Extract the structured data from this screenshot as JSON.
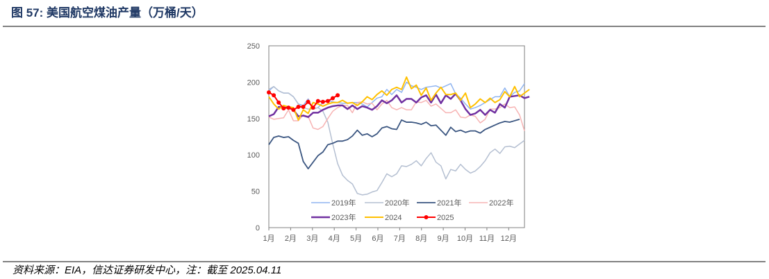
{
  "title": "图 57:  美国航空煤油产量（万桶/天）",
  "footer": "资料来源：EIA，信达证券研发中心，注：截至 2025.04.11",
  "chart_data": {
    "type": "line",
    "title": "",
    "xlabel": "",
    "ylabel": "",
    "ylim": [
      0,
      250
    ],
    "yticks": [
      "0",
      "50",
      "100",
      "150",
      "200",
      "250"
    ],
    "xticks": [
      "1月",
      "2月",
      "3月",
      "4月",
      "5月",
      "6月",
      "7月",
      "8月",
      "9月",
      "10月",
      "11月",
      "12月"
    ],
    "x_unit": "week",
    "grid": false,
    "legend": "bottom-inside",
    "series": [
      {
        "name": "2019年",
        "color": "#8fb4f0",
        "width": 1.5,
        "values": [
          188,
          194,
          188,
          185,
          185,
          180,
          170,
          168,
          177,
          163,
          165,
          172,
          175,
          173,
          172,
          171,
          171,
          172,
          172,
          170,
          166,
          172,
          178,
          180,
          190,
          183,
          190,
          186,
          200,
          195,
          193,
          190,
          193,
          194,
          195,
          192,
          195,
          198,
          184,
          178,
          170,
          163,
          165,
          168,
          172,
          176,
          180,
          180,
          192,
          180,
          186,
          188,
          198
        ]
      },
      {
        "name": "2020年",
        "color": "#b4bfd1",
        "width": 1.5,
        "values": [
          190,
          194,
          188,
          185,
          185,
          180,
          170,
          165,
          163,
          163,
          165,
          160,
          145,
          115,
          88,
          72,
          65,
          60,
          47,
          45,
          46,
          49,
          51,
          62,
          74,
          70,
          74,
          85,
          84,
          87,
          92,
          85,
          95,
          103,
          90,
          85,
          67,
          80,
          78,
          87,
          80,
          75,
          78,
          84,
          92,
          103,
          108,
          102,
          111,
          112,
          110,
          115,
          120
        ]
      },
      {
        "name": "2021年",
        "color": "#3a5580",
        "width": 1.8,
        "values": [
          114,
          124,
          126,
          124,
          125,
          120,
          116,
          91,
          81,
          90,
          99,
          104,
          114,
          116,
          119,
          119,
          121,
          126,
          134,
          127,
          129,
          125,
          129,
          137,
          139,
          136,
          135,
          148,
          145,
          145,
          144,
          142,
          145,
          140,
          141,
          134,
          127,
          138,
          132,
          134,
          131,
          133,
          133,
          130,
          135,
          138,
          141,
          144,
          146,
          145,
          147,
          149
        ]
      },
      {
        "name": "2022年",
        "color": "#f7b3b3",
        "width": 1.5,
        "values": [
          152,
          149,
          150,
          151,
          162,
          147,
          147,
          155,
          153,
          137,
          135,
          139,
          150,
          160,
          165,
          168,
          168,
          158,
          172,
          173,
          170,
          171,
          162,
          170,
          175,
          165,
          162,
          165,
          162,
          162,
          173,
          172,
          175,
          167,
          170,
          164,
          158,
          158,
          162,
          152,
          151,
          155,
          153,
          144,
          149,
          163,
          163,
          165,
          170,
          165,
          166,
          155,
          133
        ]
      },
      {
        "name": "2023年",
        "color": "#7030a0",
        "width": 2.5,
        "values": [
          153,
          156,
          166,
          165,
          165,
          162,
          153,
          154,
          152,
          158,
          158,
          162,
          165,
          167,
          168,
          168,
          163,
          168,
          163,
          167,
          165,
          162,
          167,
          175,
          171,
          175,
          182,
          172,
          177,
          177,
          172,
          179,
          182,
          172,
          183,
          171,
          182,
          177,
          184,
          175,
          163,
          155,
          157,
          162,
          155,
          162,
          158,
          170,
          165,
          180,
          181,
          182,
          178,
          180
        ]
      },
      {
        "name": "2024",
        "color": "#ffc000",
        "width": 2,
        "values": [
          180,
          170,
          163,
          168,
          166,
          165,
          148,
          162,
          157,
          172,
          170,
          167,
          170,
          172,
          172,
          175,
          171,
          172,
          168,
          173,
          180,
          176,
          183,
          188,
          182,
          190,
          193,
          190,
          207,
          191,
          196,
          182,
          192,
          175,
          185,
          193,
          183,
          183,
          185,
          175,
          185,
          165,
          170,
          177,
          172,
          178,
          172,
          176,
          187,
          180,
          194,
          180,
          185,
          190
        ]
      },
      {
        "name": "2025",
        "color": "#ff0000",
        "width": 2,
        "markers": true,
        "values": [
          186,
          182,
          172,
          164,
          165,
          162,
          166,
          166,
          173,
          165,
          174,
          173,
          174,
          178,
          182
        ]
      }
    ]
  }
}
